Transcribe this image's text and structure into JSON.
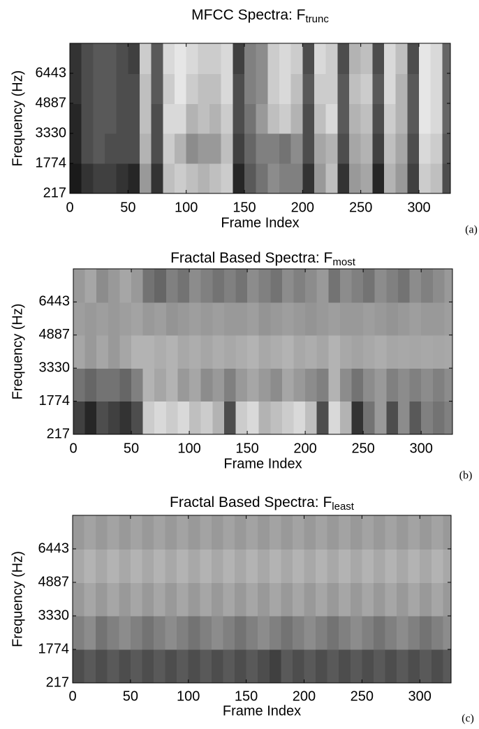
{
  "chart_data": [
    {
      "type": "heatmap",
      "title": "MFCC Spectra: F",
      "title_subscript": "trunc",
      "panel_label": "(a)",
      "xlabel": "Frame Index",
      "ylabel": "Frequency (Hz)",
      "colormap": "gray",
      "x": [
        5,
        15,
        25,
        35,
        45,
        55,
        65,
        75,
        85,
        95,
        105,
        115,
        125,
        135,
        145,
        155,
        165,
        175,
        185,
        195,
        205,
        215,
        225,
        235,
        245,
        255,
        265,
        275,
        285,
        295,
        305,
        315,
        325
      ],
      "y": [
        1000,
        2550,
        4100,
        5650,
        7200
      ],
      "values": [
        [
          0.1,
          0.2,
          0.25,
          0.25,
          0.2,
          0.15,
          0.6,
          0.2,
          0.75,
          0.8,
          0.75,
          0.7,
          0.75,
          0.8,
          0.15,
          0.35,
          0.45,
          0.55,
          0.5,
          0.5,
          0.2,
          0.6,
          0.75,
          0.2,
          0.6,
          0.65,
          0.15,
          0.7,
          0.6,
          0.25,
          0.8,
          0.75,
          0.3
        ],
        [
          0.15,
          0.3,
          0.35,
          0.3,
          0.3,
          0.3,
          0.7,
          0.3,
          0.8,
          0.7,
          0.55,
          0.6,
          0.6,
          0.75,
          0.25,
          0.4,
          0.5,
          0.5,
          0.45,
          0.55,
          0.3,
          0.65,
          0.7,
          0.3,
          0.65,
          0.7,
          0.25,
          0.75,
          0.65,
          0.3,
          0.85,
          0.8,
          0.35
        ],
        [
          0.15,
          0.3,
          0.35,
          0.35,
          0.3,
          0.3,
          0.75,
          0.3,
          0.85,
          0.85,
          0.7,
          0.75,
          0.7,
          0.8,
          0.3,
          0.45,
          0.6,
          0.75,
          0.8,
          0.7,
          0.3,
          0.75,
          0.85,
          0.35,
          0.7,
          0.75,
          0.3,
          0.8,
          0.7,
          0.35,
          0.9,
          0.85,
          0.4
        ],
        [
          0.2,
          0.3,
          0.35,
          0.35,
          0.3,
          0.3,
          0.75,
          0.35,
          0.8,
          0.9,
          0.8,
          0.75,
          0.75,
          0.85,
          0.3,
          0.5,
          0.55,
          0.8,
          0.85,
          0.75,
          0.35,
          0.8,
          0.8,
          0.35,
          0.75,
          0.8,
          0.35,
          0.85,
          0.7,
          0.35,
          0.9,
          0.85,
          0.4
        ],
        [
          0.2,
          0.3,
          0.35,
          0.35,
          0.3,
          0.25,
          0.8,
          0.35,
          0.85,
          0.9,
          0.85,
          0.8,
          0.8,
          0.85,
          0.25,
          0.5,
          0.55,
          0.8,
          0.85,
          0.8,
          0.3,
          0.85,
          0.8,
          0.3,
          0.7,
          0.75,
          0.3,
          0.85,
          0.75,
          0.3,
          0.9,
          0.85,
          0.4
        ]
      ],
      "xlim": [
        0,
        327
      ],
      "ylim": [
        217,
        8000
      ],
      "xticks": [
        0,
        50,
        100,
        150,
        200,
        250,
        300
      ],
      "yticks": [
        217,
        1774,
        3330,
        4887,
        6443
      ]
    },
    {
      "type": "heatmap",
      "title": "Fractal Based Spectra: F",
      "title_subscript": "most",
      "panel_label": "(b)",
      "xlabel": "Frame Index",
      "ylabel": "Frequency (Hz)",
      "colormap": "gray",
      "x": [
        5,
        15,
        25,
        35,
        45,
        55,
        65,
        75,
        85,
        95,
        105,
        115,
        125,
        135,
        145,
        155,
        165,
        175,
        185,
        195,
        205,
        215,
        225,
        235,
        245,
        255,
        265,
        275,
        285,
        295,
        305,
        315,
        325
      ],
      "y": [
        1000,
        2550,
        4100,
        5650,
        7200
      ],
      "values": [
        [
          0.25,
          0.15,
          0.3,
          0.25,
          0.2,
          0.3,
          0.8,
          0.85,
          0.8,
          0.85,
          0.75,
          0.8,
          0.7,
          0.3,
          0.8,
          0.85,
          0.7,
          0.75,
          0.8,
          0.85,
          0.75,
          0.3,
          0.85,
          0.7,
          0.2,
          0.45,
          0.6,
          0.3,
          0.55,
          0.35,
          0.5,
          0.45,
          0.5
        ],
        [
          0.45,
          0.4,
          0.45,
          0.45,
          0.4,
          0.5,
          0.7,
          0.65,
          0.7,
          0.6,
          0.65,
          0.55,
          0.6,
          0.5,
          0.6,
          0.65,
          0.6,
          0.55,
          0.65,
          0.6,
          0.55,
          0.5,
          0.7,
          0.55,
          0.45,
          0.55,
          0.6,
          0.5,
          0.55,
          0.5,
          0.55,
          0.5,
          0.55
        ],
        [
          0.65,
          0.6,
          0.65,
          0.6,
          0.65,
          0.7,
          0.7,
          0.68,
          0.7,
          0.66,
          0.68,
          0.65,
          0.68,
          0.66,
          0.68,
          0.7,
          0.66,
          0.68,
          0.7,
          0.66,
          0.68,
          0.65,
          0.7,
          0.66,
          0.64,
          0.66,
          0.68,
          0.65,
          0.66,
          0.65,
          0.66,
          0.65,
          0.66
        ],
        [
          0.62,
          0.6,
          0.62,
          0.6,
          0.62,
          0.64,
          0.6,
          0.62,
          0.58,
          0.6,
          0.62,
          0.6,
          0.62,
          0.6,
          0.6,
          0.62,
          0.58,
          0.6,
          0.62,
          0.6,
          0.58,
          0.6,
          0.62,
          0.6,
          0.6,
          0.62,
          0.6,
          0.58,
          0.6,
          0.62,
          0.6,
          0.6,
          0.62
        ],
        [
          0.6,
          0.65,
          0.55,
          0.6,
          0.65,
          0.6,
          0.45,
          0.4,
          0.5,
          0.45,
          0.55,
          0.5,
          0.45,
          0.5,
          0.45,
          0.55,
          0.5,
          0.45,
          0.55,
          0.5,
          0.55,
          0.6,
          0.45,
          0.55,
          0.5,
          0.45,
          0.55,
          0.5,
          0.45,
          0.55,
          0.5,
          0.55,
          0.6
        ]
      ],
      "xlim": [
        0,
        327
      ],
      "ylim": [
        217,
        8000
      ],
      "xticks": [
        0,
        50,
        100,
        150,
        200,
        250,
        300
      ],
      "yticks": [
        217,
        1774,
        3330,
        4887,
        6443
      ]
    },
    {
      "type": "heatmap",
      "title": "Fractal Based Spectra: F",
      "title_subscript": "least",
      "panel_label": "(c)",
      "xlabel": "Frame Index",
      "ylabel": "Frequency (Hz)",
      "colormap": "gray",
      "x": [
        5,
        15,
        25,
        35,
        45,
        55,
        65,
        75,
        85,
        95,
        105,
        115,
        125,
        135,
        145,
        155,
        165,
        175,
        185,
        195,
        205,
        215,
        225,
        235,
        245,
        255,
        265,
        275,
        285,
        295,
        305,
        315,
        325
      ],
      "y": [
        1000,
        2550,
        4100,
        5650,
        7200
      ],
      "values": [
        [
          0.3,
          0.35,
          0.3,
          0.35,
          0.3,
          0.35,
          0.3,
          0.35,
          0.3,
          0.35,
          0.3,
          0.35,
          0.3,
          0.35,
          0.3,
          0.35,
          0.3,
          0.25,
          0.35,
          0.3,
          0.35,
          0.3,
          0.35,
          0.3,
          0.35,
          0.3,
          0.35,
          0.3,
          0.35,
          0.3,
          0.35,
          0.3,
          0.35
        ],
        [
          0.5,
          0.55,
          0.45,
          0.5,
          0.55,
          0.5,
          0.45,
          0.5,
          0.55,
          0.5,
          0.45,
          0.5,
          0.55,
          0.5,
          0.45,
          0.5,
          0.55,
          0.5,
          0.45,
          0.5,
          0.55,
          0.5,
          0.45,
          0.5,
          0.55,
          0.5,
          0.45,
          0.5,
          0.55,
          0.5,
          0.45,
          0.5,
          0.55
        ],
        [
          0.6,
          0.65,
          0.6,
          0.65,
          0.6,
          0.65,
          0.6,
          0.65,
          0.6,
          0.65,
          0.6,
          0.65,
          0.6,
          0.65,
          0.6,
          0.65,
          0.6,
          0.65,
          0.6,
          0.65,
          0.6,
          0.65,
          0.6,
          0.65,
          0.6,
          0.65,
          0.6,
          0.65,
          0.6,
          0.65,
          0.6,
          0.65,
          0.6
        ],
        [
          0.66,
          0.7,
          0.66,
          0.7,
          0.66,
          0.7,
          0.66,
          0.7,
          0.66,
          0.7,
          0.66,
          0.7,
          0.66,
          0.7,
          0.66,
          0.7,
          0.66,
          0.7,
          0.66,
          0.7,
          0.66,
          0.7,
          0.66,
          0.7,
          0.66,
          0.7,
          0.66,
          0.7,
          0.66,
          0.7,
          0.66,
          0.7,
          0.66
        ],
        [
          0.6,
          0.64,
          0.6,
          0.64,
          0.6,
          0.64,
          0.6,
          0.64,
          0.6,
          0.64,
          0.6,
          0.64,
          0.6,
          0.64,
          0.6,
          0.64,
          0.6,
          0.64,
          0.6,
          0.64,
          0.6,
          0.64,
          0.6,
          0.64,
          0.6,
          0.64,
          0.6,
          0.64,
          0.6,
          0.64,
          0.6,
          0.64,
          0.6
        ]
      ],
      "xlim": [
        0,
        327
      ],
      "ylim": [
        217,
        8000
      ],
      "xticks": [
        0,
        50,
        100,
        150,
        200,
        250,
        300
      ],
      "yticks": [
        217,
        1774,
        3330,
        4887,
        6443
      ]
    }
  ]
}
